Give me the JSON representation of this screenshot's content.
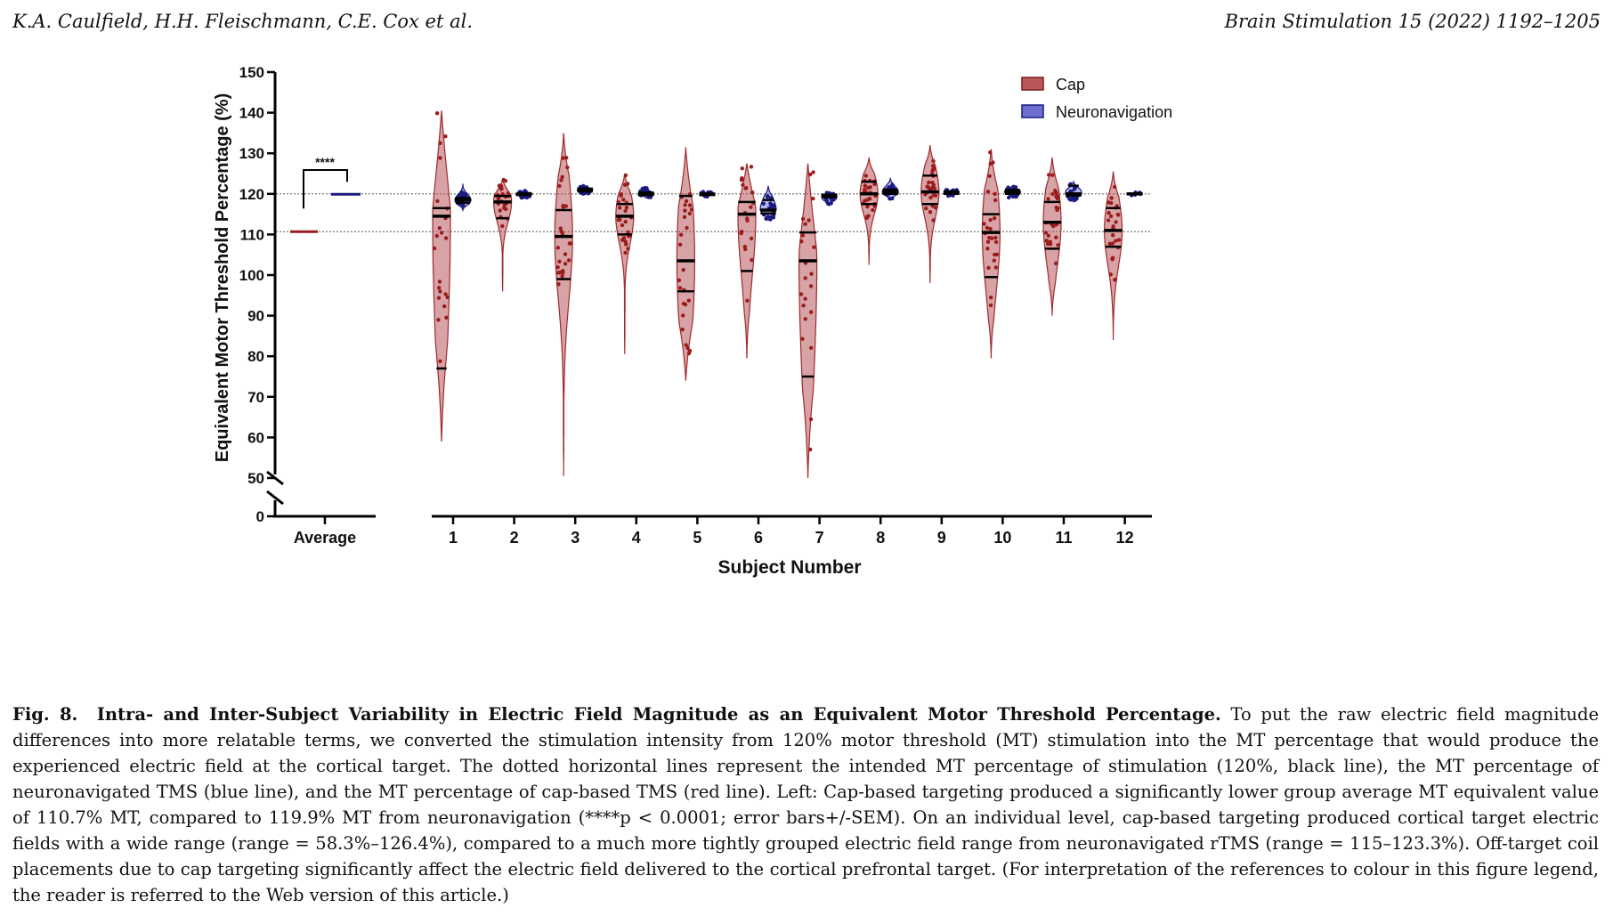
{
  "header": {
    "authors": "K.A. Caulfield, H.H. Fleischmann, C.E. Cox et al.",
    "journal": "Brain Stimulation 15 (2022) 1192–1205"
  },
  "chart_data": {
    "type": "violin",
    "ylabel": "Equivalent Motor Threshold Percentage (%)",
    "xlabel": "Subject Number",
    "y_ticks": [
      0,
      50,
      60,
      70,
      80,
      90,
      100,
      110,
      120,
      130,
      140,
      150
    ],
    "y_axis_break": [
      0,
      50
    ],
    "reference_lines": [
      120,
      110.7
    ],
    "legend": [
      {
        "label": "Cap",
        "color": "#b8585c"
      },
      {
        "label": "Neuronavigation",
        "color": "#6f6fd0"
      }
    ],
    "average": {
      "label": "Average",
      "cap": 110.7,
      "neuronavigation": 119.9,
      "significance": "****"
    },
    "subjects": [
      {
        "label": "1",
        "cap": {
          "min": 59,
          "max": 140.5,
          "median": 114.5,
          "q1": 77,
          "q3": 116.5
        },
        "neuronavigation": {
          "min": 116,
          "max": 122.5,
          "median": 118.5,
          "q1": 117.8,
          "q3": 119
        }
      },
      {
        "label": "2",
        "cap": {
          "min": 96,
          "max": 123.5,
          "median": 118,
          "q1": 114,
          "q3": 119.5
        },
        "neuronavigation": {
          "min": 119,
          "max": 120.8,
          "median": 119.9,
          "q1": 119.7,
          "q3": 120.1
        }
      },
      {
        "label": "3",
        "cap": {
          "min": 50.5,
          "max": 135,
          "median": 109.5,
          "q1": 99,
          "q3": 116
        },
        "neuronavigation": {
          "min": 119.8,
          "max": 122,
          "median": 121,
          "q1": 120.6,
          "q3": 121.3
        }
      },
      {
        "label": "4",
        "cap": {
          "min": 80.5,
          "max": 125,
          "median": 114.5,
          "q1": 110,
          "q3": 117.5
        },
        "neuronavigation": {
          "min": 119,
          "max": 121.5,
          "median": 120,
          "q1": 119.7,
          "q3": 120.3
        }
      },
      {
        "label": "5",
        "cap": {
          "min": 74,
          "max": 131.5,
          "median": 103.5,
          "q1": 96,
          "q3": 119.5
        },
        "neuronavigation": {
          "min": 119.3,
          "max": 120.6,
          "median": 119.9,
          "q1": 119.7,
          "q3": 120.1
        }
      },
      {
        "label": "6",
        "cap": {
          "min": 79.5,
          "max": 127.5,
          "median": 115,
          "q1": 101,
          "q3": 118
        },
        "neuronavigation": {
          "min": 113.5,
          "max": 122,
          "median": 116,
          "q1": 115.2,
          "q3": 118.5
        }
      },
      {
        "label": "7",
        "cap": {
          "min": 50,
          "max": 127.5,
          "median": 103.5,
          "q1": 75,
          "q3": 110.5
        },
        "neuronavigation": {
          "min": 117,
          "max": 120.3,
          "median": 119.5,
          "q1": 119.2,
          "q3": 119.8
        }
      },
      {
        "label": "8",
        "cap": {
          "min": 102.5,
          "max": 129,
          "median": 120,
          "q1": 117.5,
          "q3": 123
        },
        "neuronavigation": {
          "min": 118.5,
          "max": 124,
          "median": 120.5,
          "q1": 120,
          "q3": 121
        }
      },
      {
        "label": "9",
        "cap": {
          "min": 98,
          "max": 132,
          "median": 120.5,
          "q1": 117.5,
          "q3": 124.5
        },
        "neuronavigation": {
          "min": 119.5,
          "max": 121,
          "median": 120.3,
          "q1": 120,
          "q3": 120.6
        }
      },
      {
        "label": "10",
        "cap": {
          "min": 79.5,
          "max": 131,
          "median": 110.5,
          "q1": 99.5,
          "q3": 115
        },
        "neuronavigation": {
          "min": 119,
          "max": 122,
          "median": 120.5,
          "q1": 120,
          "q3": 121
        }
      },
      {
        "label": "11",
        "cap": {
          "min": 90,
          "max": 129,
          "median": 113,
          "q1": 106.5,
          "q3": 118
        },
        "neuronavigation": {
          "min": 118,
          "max": 123,
          "median": 120,
          "q1": 119.6,
          "q3": 122
        }
      },
      {
        "label": "12",
        "cap": {
          "min": 84,
          "max": 125.5,
          "median": 111,
          "q1": 107,
          "q3": 116.5
        },
        "neuronavigation": {
          "min": 119.6,
          "max": 120.4,
          "median": 120,
          "q1": 119.9,
          "q3": 120.1
        }
      }
    ]
  },
  "caption": {
    "label": "Fig. 8.",
    "title": "Intra- and Inter-Subject Variability in Electric Field Magnitude as an Equivalent Motor Threshold Percentage.",
    "text": "To put the raw electric field magnitude differences into more relatable terms, we converted the stimulation intensity from 120% motor threshold (MT) stimulation into the MT percentage that would produce the experienced electric field at the cortical target. The dotted horizontal lines represent the intended MT percentage of stimulation (120%, black line), the MT percentage of neuronavigated TMS (blue line), and the MT percentage of cap-based TMS (red line). Left: Cap-based targeting produced a significantly lower group average MT equivalent value of 110.7% MT, compared to 119.9% MT from neuronavigation (****p < 0.0001; error bars+/-SEM). On an individual level, cap-based targeting produced cortical target electric fields with a wide range (range = 58.3%–126.4%), compared to a much more tightly grouped electric field range from neuronavigated rTMS (range = 115–123.3%). Off-target coil placements due to cap targeting significantly affect the electric field delivered to the cortical prefrontal target. (For interpretation of the references to colour in this figure legend, the reader is referred to the Web version of this article.)"
  }
}
